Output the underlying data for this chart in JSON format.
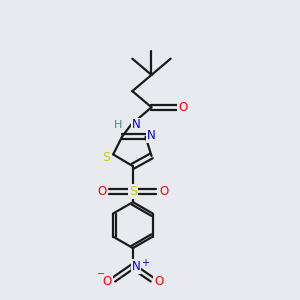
{
  "bg_color": "#e8eaf0",
  "bond_color": "#1a1a1a",
  "colors": {
    "O": "#ff0000",
    "N": "#0000cd",
    "S": "#cccc00",
    "H": "#4a8888",
    "C": "#1a1a1a"
  }
}
